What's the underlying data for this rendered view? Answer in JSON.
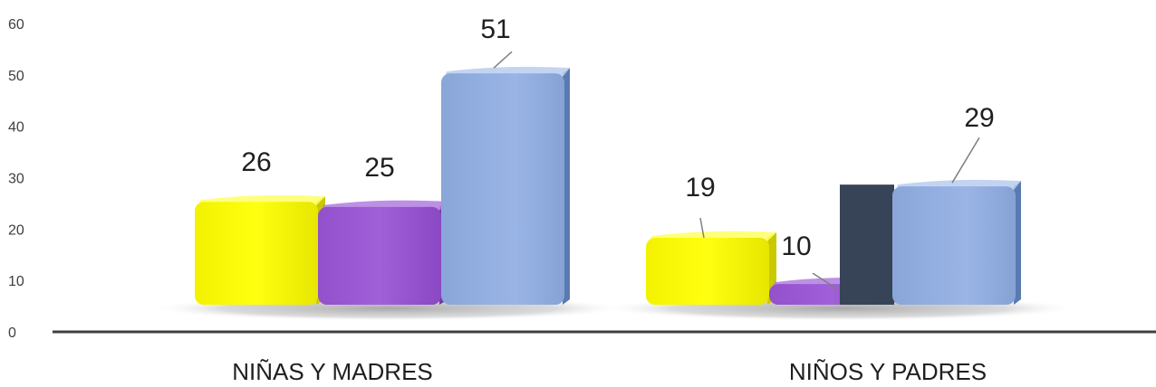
{
  "chart_data": {
    "type": "bar",
    "categories": [
      "NIÑAS Y MADRES",
      "NIÑOS Y PADRES"
    ],
    "series": [
      {
        "values": [
          26,
          19
        ],
        "color": "#ffff00"
      },
      {
        "values": [
          25,
          10
        ],
        "color": "#9b59d0"
      },
      {
        "values": [
          51,
          29
        ],
        "color": "#8eaadb"
      }
    ],
    "data_labels": [
      [
        "26",
        "25",
        "51"
      ],
      [
        "19",
        "10",
        "29"
      ]
    ],
    "yticks": [
      "0",
      "10",
      "20",
      "30",
      "40",
      "50",
      "60"
    ],
    "ylim": [
      0,
      60
    ],
    "grid": false,
    "legend": "none",
    "title": "",
    "xlabel": "",
    "ylabel": ""
  }
}
